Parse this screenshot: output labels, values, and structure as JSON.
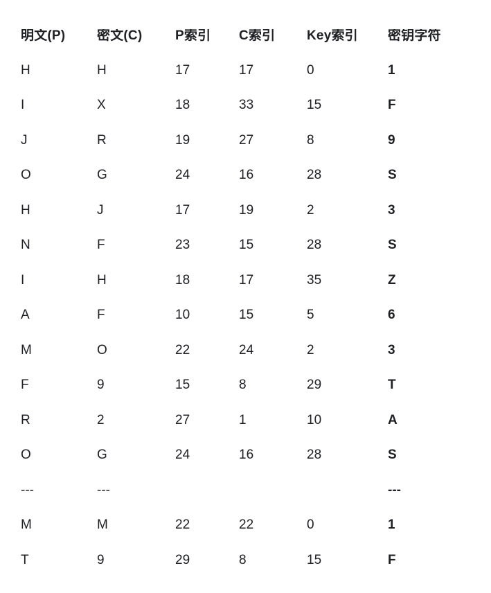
{
  "colors": {
    "text": "#202124",
    "background": "#ffffff"
  },
  "table": {
    "columns": [
      "明文(P)",
      "密文(C)",
      "P索引",
      "C索引",
      "Key索引",
      "密钥字符"
    ],
    "rows": [
      [
        "H",
        "H",
        "17",
        "17",
        "0",
        "1"
      ],
      [
        "I",
        "X",
        "18",
        "33",
        "15",
        "F"
      ],
      [
        "J",
        "R",
        "19",
        "27",
        "8",
        "9"
      ],
      [
        "O",
        "G",
        "24",
        "16",
        "28",
        "S"
      ],
      [
        "H",
        "J",
        "17",
        "19",
        "2",
        "3"
      ],
      [
        "N",
        "F",
        "23",
        "15",
        "28",
        "S"
      ],
      [
        "I",
        "H",
        "18",
        "17",
        "35",
        "Z"
      ],
      [
        "A",
        "F",
        "10",
        "15",
        "5",
        "6"
      ],
      [
        "M",
        "O",
        "22",
        "24",
        "2",
        "3"
      ],
      [
        "F",
        "9",
        "15",
        "8",
        "29",
        "T"
      ],
      [
        "R",
        "2",
        "27",
        "1",
        "10",
        "A"
      ],
      [
        "O",
        "G",
        "24",
        "16",
        "28",
        "S"
      ],
      [
        "---",
        "---",
        "",
        "",
        "",
        "---"
      ],
      [
        "M",
        "M",
        "22",
        "22",
        "0",
        "1"
      ],
      [
        "T",
        "9",
        "29",
        "8",
        "15",
        "F"
      ]
    ]
  }
}
